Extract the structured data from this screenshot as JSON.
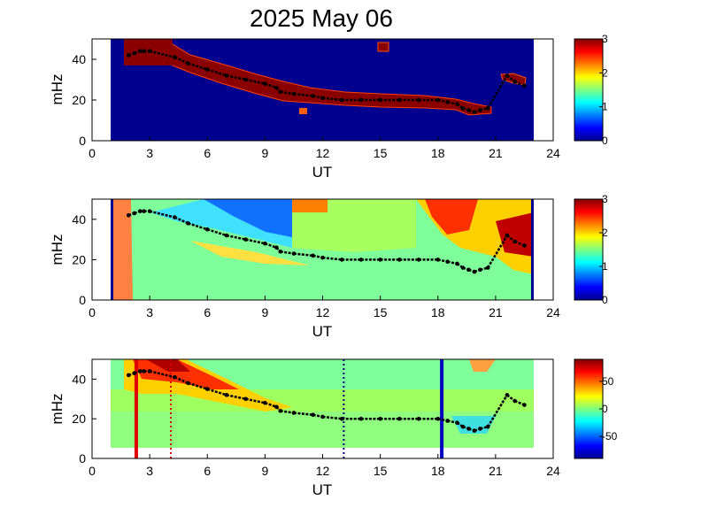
{
  "chart_data": [
    {
      "type": "heatmap",
      "title": "2025 May 06",
      "xlabel": "UT",
      "ylabel": "mHz",
      "xlim": [
        0,
        24
      ],
      "ylim": [
        0,
        50
      ],
      "xticks": [
        "0",
        "3",
        "6",
        "9",
        "12",
        "15",
        "18",
        "21",
        "24"
      ],
      "yticks": [
        "0",
        "20",
        "40"
      ],
      "colorbar": {
        "range": [
          0,
          3
        ],
        "ticks": [
          "0",
          "1",
          "2",
          "3"
        ],
        "colormap": "jet"
      },
      "data_range_ut": [
        1,
        23
      ]
    },
    {
      "type": "heatmap",
      "xlabel": "UT",
      "ylabel": "mHz",
      "xlim": [
        0,
        24
      ],
      "ylim": [
        0,
        50
      ],
      "xticks": [
        "0",
        "3",
        "6",
        "9",
        "12",
        "15",
        "18",
        "21",
        "24"
      ],
      "yticks": [
        "0",
        "20",
        "40"
      ],
      "colorbar": {
        "range": [
          0,
          3
        ],
        "ticks": [
          "0",
          "1",
          "2",
          "3"
        ],
        "colormap": "jet"
      },
      "data_range_ut": [
        1,
        23
      ]
    },
    {
      "type": "heatmap",
      "xlabel": "UT",
      "ylabel": "mHz",
      "xlim": [
        0,
        24
      ],
      "ylim": [
        0,
        50
      ],
      "xticks": [
        "0",
        "3",
        "6",
        "9",
        "12",
        "15",
        "18",
        "21",
        "24"
      ],
      "yticks": [
        "0",
        "20",
        "40"
      ],
      "colorbar": {
        "range": [
          -90,
          90
        ],
        "ticks": [
          "50",
          "0",
          "-50"
        ],
        "colormap": "jet"
      },
      "data_range_ut": [
        1,
        23
      ],
      "vertical_markers": [
        {
          "ut": 2.3,
          "color": "#e00000",
          "style": "solid"
        },
        {
          "ut": 4.1,
          "color": "#e00000",
          "style": "dotted"
        },
        {
          "ut": 13.1,
          "color": "#000080",
          "style": "dotted"
        },
        {
          "ut": 18.2,
          "color": "#0000c0",
          "style": "solid"
        }
      ]
    }
  ],
  "resonance_trace": {
    "ut": [
      1.9,
      2.2,
      2.5,
      2.7,
      3.0,
      4.3,
      5.0,
      6.0,
      7.0,
      8.0,
      9.0,
      9.6,
      9.8,
      10.5,
      11.5,
      12.0,
      13.0,
      14.0,
      15.0,
      16.0,
      17.0,
      18.0,
      18.5,
      19.0,
      19.3,
      19.6,
      19.9,
      20.2,
      20.6,
      21.6,
      22.0,
      22.5
    ],
    "mhz": [
      42,
      43,
      44,
      44,
      44,
      41,
      38,
      35,
      32,
      30,
      28,
      26,
      24,
      23,
      22,
      21,
      20,
      20,
      20,
      20,
      20,
      20,
      19,
      18,
      16,
      15,
      14,
      15,
      16,
      32,
      29,
      27
    ]
  }
}
